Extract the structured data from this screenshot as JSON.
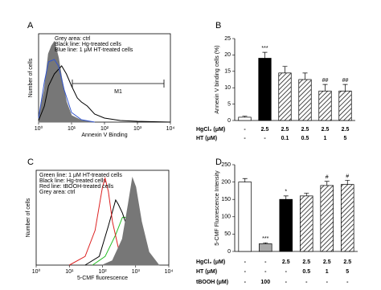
{
  "chart_data": [
    {
      "type": "histogram",
      "panel": "A",
      "xlabel": "Annexin V Binding",
      "ylabel": "Number of cells",
      "xscale": "log",
      "xlim": [
        1,
        10000
      ],
      "ylim": [
        0,
        100
      ],
      "xticks": [
        {
          "value": 1,
          "label": "10⁰"
        },
        {
          "value": 10,
          "label": "10¹"
        },
        {
          "value": 100,
          "label": "10²"
        },
        {
          "value": 1000,
          "label": "10³"
        },
        {
          "value": 10000,
          "label": "10⁴"
        }
      ],
      "annotation": "M1",
      "series": [
        {
          "name": "Grey area: ctrl",
          "color": "#777777",
          "fill": true,
          "x": [
            1,
            1.5,
            2,
            2.5,
            3,
            4,
            5,
            7,
            10,
            20,
            50
          ],
          "values": [
            5,
            40,
            85,
            95,
            100,
            80,
            55,
            25,
            8,
            2,
            0
          ]
        },
        {
          "name": "Black line: Hg-treated cells",
          "color": "#000000",
          "fill": false,
          "x": [
            1,
            1.5,
            2,
            3,
            5,
            7,
            10,
            15,
            20,
            30,
            50,
            100,
            300,
            1000,
            10000
          ],
          "values": [
            2,
            20,
            45,
            60,
            70,
            60,
            45,
            30,
            25,
            20,
            10,
            5,
            2,
            1,
            0
          ]
        },
        {
          "name": "Blue line: 1 μM HT-treated cells",
          "color": "#3355cc",
          "fill": false,
          "x": [
            1,
            1.5,
            2,
            3,
            4,
            6,
            10,
            20,
            50
          ],
          "values": [
            5,
            50,
            75,
            78,
            70,
            40,
            12,
            3,
            0
          ]
        }
      ]
    },
    {
      "type": "bar",
      "panel": "B",
      "ylabel": "Annexin V binding cells (%)",
      "ylim": [
        0,
        25
      ],
      "yticks": [
        0,
        5,
        10,
        15,
        20,
        25
      ],
      "values": [
        1,
        19,
        14.5,
        12.5,
        9,
        9
      ],
      "errors": [
        0.3,
        1.8,
        2,
        2,
        2,
        2
      ],
      "fills": [
        "#ffffff",
        "#000000",
        "hatch",
        "hatch",
        "hatch",
        "hatch"
      ],
      "sig": [
        null,
        "***",
        null,
        null,
        "##",
        "##"
      ],
      "conditions": [
        {
          "label": "HgCl₂ (μM)",
          "values": [
            "-",
            "2.5",
            "2.5",
            "2.5",
            "2.5",
            "2.5"
          ]
        },
        {
          "label": "HT (μM)",
          "values": [
            "-",
            "-",
            "0.1",
            "0.5",
            "1",
            "5"
          ]
        }
      ]
    },
    {
      "type": "histogram",
      "panel": "C",
      "xlabel": "5-CMF fluorescence",
      "ylabel": "Number of cells",
      "xscale": "log",
      "xlim": [
        1,
        10000
      ],
      "ylim": [
        0,
        100
      ],
      "xticks": [
        {
          "value": 1,
          "label": "10⁰"
        },
        {
          "value": 10,
          "label": "10¹"
        },
        {
          "value": 100,
          "label": "10²"
        },
        {
          "value": 1000,
          "label": "10³"
        },
        {
          "value": 10000,
          "label": "10⁴"
        }
      ],
      "series": [
        {
          "name": "Green line: 1 μM HT-treated cells",
          "color": "#22bb22",
          "fill": false,
          "x": [
            50,
            120,
            250,
            400,
            500,
            700,
            1000,
            2000,
            4000
          ],
          "values": [
            0,
            10,
            35,
            55,
            55,
            45,
            30,
            10,
            0
          ]
        },
        {
          "name": "Black line: Hg-treated cells",
          "color": "#000000",
          "fill": false,
          "x": [
            30,
            80,
            150,
            250,
            300,
            400,
            600,
            1000,
            2000
          ],
          "values": [
            0,
            10,
            45,
            75,
            70,
            60,
            40,
            15,
            0
          ]
        },
        {
          "name": "Red line: tBOOH-treated cells",
          "color": "#dd2222",
          "fill": false,
          "x": [
            10,
            30,
            60,
            100,
            120,
            150,
            200,
            300,
            500,
            1000
          ],
          "values": [
            0,
            10,
            40,
            90,
            100,
            85,
            50,
            20,
            5,
            0
          ]
        },
        {
          "name": "Grey area: ctrl",
          "color": "#777777",
          "fill": true,
          "x": [
            100,
            200,
            400,
            600,
            800,
            1000,
            1500,
            2500,
            5000
          ],
          "values": [
            0,
            5,
            30,
            70,
            100,
            90,
            50,
            15,
            0
          ]
        }
      ]
    },
    {
      "type": "bar",
      "panel": "D",
      "ylabel": "5-CMF Fluorescence Intensity",
      "ylim": [
        0,
        250
      ],
      "yticks": [
        0,
        50,
        100,
        150,
        200,
        250
      ],
      "values": [
        200,
        22,
        150,
        160,
        190,
        193
      ],
      "errors": [
        10,
        3,
        10,
        8,
        12,
        12
      ],
      "fills": [
        "#ffffff",
        "#aaaaaa",
        "#000000",
        "hatch",
        "hatch",
        "hatch"
      ],
      "sig": [
        null,
        "***",
        "*",
        null,
        "#",
        "#"
      ],
      "conditions": [
        {
          "label": "HgCl₂ (μM)",
          "values": [
            "-",
            "-",
            "2.5",
            "2.5",
            "2.5",
            "2.5"
          ]
        },
        {
          "label": "HT (μM)",
          "values": [
            "-",
            "-",
            "-",
            "0.5",
            "1",
            "5"
          ]
        },
        {
          "label": "tBOOH (μM)",
          "values": [
            "-",
            "100",
            "-",
            "-",
            "-",
            "-"
          ]
        }
      ]
    }
  ]
}
